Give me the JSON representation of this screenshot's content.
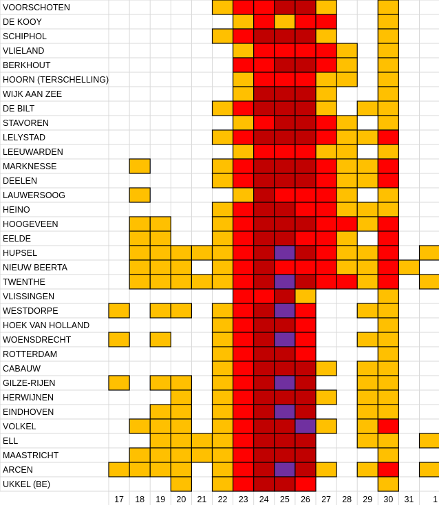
{
  "chart_data": {
    "type": "heatmap",
    "title": "",
    "xlabel": "",
    "ylabel": "",
    "x_labels": [
      "17",
      "18",
      "19",
      "20",
      "21",
      "22",
      "23",
      "24",
      "25",
      "26",
      "27",
      "28",
      "29",
      "30",
      "31",
      "1"
    ],
    "level_colors": [
      "#ffffff",
      "#ffc000",
      "#ff0000",
      "#c00000",
      "#7030a0"
    ],
    "rows": [
      {
        "station": "VOORSCHOTEN",
        "levels": [
          0,
          0,
          0,
          0,
          0,
          1,
          2,
          2,
          3,
          3,
          1,
          0,
          0,
          1,
          0,
          0
        ]
      },
      {
        "station": "DE KOOY",
        "levels": [
          0,
          0,
          0,
          0,
          0,
          0,
          1,
          2,
          1,
          2,
          2,
          0,
          0,
          1,
          0,
          0
        ]
      },
      {
        "station": "SCHIPHOL",
        "levels": [
          0,
          0,
          0,
          0,
          0,
          1,
          2,
          3,
          3,
          3,
          1,
          0,
          0,
          1,
          0,
          0
        ]
      },
      {
        "station": "VLIELAND",
        "levels": [
          0,
          0,
          0,
          0,
          0,
          0,
          1,
          2,
          2,
          2,
          2,
          1,
          0,
          1,
          0,
          0
        ]
      },
      {
        "station": "BERKHOUT",
        "levels": [
          0,
          0,
          0,
          0,
          0,
          0,
          2,
          2,
          3,
          3,
          2,
          1,
          0,
          1,
          0,
          0
        ]
      },
      {
        "station": "HOORN (TERSCHELLING)",
        "levels": [
          0,
          0,
          0,
          0,
          0,
          0,
          1,
          2,
          2,
          2,
          1,
          1,
          0,
          1,
          0,
          0
        ]
      },
      {
        "station": "WIJK AAN ZEE",
        "levels": [
          0,
          0,
          0,
          0,
          0,
          0,
          1,
          3,
          3,
          3,
          1,
          0,
          0,
          1,
          0,
          0
        ]
      },
      {
        "station": "DE BILT",
        "levels": [
          0,
          0,
          0,
          0,
          0,
          1,
          2,
          3,
          3,
          3,
          1,
          0,
          1,
          1,
          0,
          0
        ]
      },
      {
        "station": "STAVOREN",
        "levels": [
          0,
          0,
          0,
          0,
          0,
          0,
          1,
          2,
          3,
          3,
          2,
          1,
          0,
          1,
          0,
          0
        ]
      },
      {
        "station": "LELYSTAD",
        "levels": [
          0,
          0,
          0,
          0,
          0,
          1,
          2,
          3,
          3,
          3,
          2,
          1,
          1,
          2,
          0,
          0
        ]
      },
      {
        "station": "LEEUWARDEN",
        "levels": [
          0,
          0,
          0,
          0,
          0,
          0,
          1,
          2,
          2,
          2,
          1,
          1,
          0,
          1,
          0,
          0
        ]
      },
      {
        "station": "MARKNESSE",
        "levels": [
          0,
          1,
          0,
          0,
          0,
          1,
          2,
          3,
          3,
          3,
          2,
          1,
          1,
          2,
          0,
          0
        ]
      },
      {
        "station": "DEELEN",
        "levels": [
          0,
          0,
          0,
          0,
          0,
          1,
          2,
          3,
          3,
          3,
          2,
          1,
          1,
          2,
          0,
          0
        ]
      },
      {
        "station": "LAUWERSOOG",
        "levels": [
          0,
          1,
          0,
          0,
          0,
          0,
          1,
          3,
          2,
          2,
          2,
          1,
          0,
          1,
          0,
          0
        ]
      },
      {
        "station": "HEINO",
        "levels": [
          0,
          0,
          0,
          0,
          0,
          1,
          2,
          3,
          3,
          2,
          2,
          1,
          1,
          1,
          0,
          0
        ]
      },
      {
        "station": "HOOGEVEEN",
        "levels": [
          0,
          1,
          1,
          0,
          0,
          1,
          2,
          3,
          3,
          3,
          2,
          2,
          1,
          2,
          0,
          0
        ]
      },
      {
        "station": "EELDE",
        "levels": [
          0,
          1,
          1,
          0,
          0,
          1,
          2,
          3,
          3,
          2,
          2,
          1,
          0,
          2,
          0,
          0
        ]
      },
      {
        "station": "HUPSEL",
        "levels": [
          0,
          1,
          1,
          1,
          1,
          1,
          2,
          3,
          4,
          3,
          2,
          1,
          1,
          2,
          0,
          1
        ]
      },
      {
        "station": "NIEUW BEERTA",
        "levels": [
          0,
          1,
          1,
          1,
          0,
          1,
          2,
          3,
          2,
          2,
          2,
          1,
          1,
          2,
          1,
          0
        ]
      },
      {
        "station": "TWENTHE",
        "levels": [
          0,
          1,
          1,
          1,
          1,
          1,
          2,
          3,
          4,
          3,
          2,
          2,
          1,
          2,
          0,
          1
        ]
      },
      {
        "station": "VLISSINGEN",
        "levels": [
          0,
          0,
          0,
          0,
          0,
          0,
          2,
          2,
          3,
          1,
          0,
          0,
          0,
          1,
          0,
          0
        ]
      },
      {
        "station": "WESTDORPE",
        "levels": [
          1,
          0,
          1,
          1,
          0,
          1,
          2,
          3,
          4,
          2,
          0,
          0,
          1,
          1,
          0,
          0
        ]
      },
      {
        "station": "HOEK VAN HOLLAND",
        "levels": [
          0,
          0,
          0,
          0,
          0,
          1,
          2,
          3,
          3,
          2,
          0,
          0,
          0,
          1,
          0,
          0
        ]
      },
      {
        "station": "WOENSDRECHT",
        "levels": [
          1,
          0,
          1,
          0,
          0,
          1,
          2,
          3,
          4,
          2,
          0,
          0,
          1,
          1,
          0,
          0
        ]
      },
      {
        "station": "ROTTERDAM",
        "levels": [
          0,
          0,
          0,
          0,
          0,
          1,
          2,
          3,
          3,
          2,
          0,
          0,
          0,
          1,
          0,
          0
        ]
      },
      {
        "station": "CABAUW",
        "levels": [
          0,
          0,
          0,
          0,
          0,
          1,
          2,
          3,
          3,
          3,
          1,
          0,
          1,
          1,
          0,
          0
        ]
      },
      {
        "station": "GILZE-RIJEN",
        "levels": [
          1,
          0,
          1,
          1,
          0,
          1,
          2,
          3,
          4,
          3,
          0,
          0,
          1,
          1,
          0,
          0
        ]
      },
      {
        "station": "HERWIJNEN",
        "levels": [
          0,
          0,
          0,
          1,
          0,
          1,
          2,
          3,
          3,
          3,
          1,
          0,
          1,
          1,
          0,
          0
        ]
      },
      {
        "station": "EINDHOVEN",
        "levels": [
          0,
          0,
          1,
          1,
          0,
          1,
          2,
          3,
          4,
          3,
          0,
          0,
          1,
          1,
          0,
          0
        ]
      },
      {
        "station": "VOLKEL",
        "levels": [
          0,
          1,
          1,
          1,
          0,
          1,
          2,
          3,
          3,
          4,
          1,
          0,
          1,
          2,
          0,
          0
        ]
      },
      {
        "station": "ELL",
        "levels": [
          0,
          0,
          1,
          1,
          1,
          1,
          2,
          3,
          3,
          3,
          0,
          0,
          1,
          1,
          0,
          1
        ]
      },
      {
        "station": "MAASTRICHT",
        "levels": [
          0,
          1,
          1,
          1,
          1,
          1,
          2,
          3,
          3,
          3,
          0,
          0,
          0,
          1,
          0,
          0
        ]
      },
      {
        "station": "ARCEN",
        "levels": [
          1,
          1,
          1,
          1,
          0,
          1,
          2,
          3,
          4,
          3,
          1,
          0,
          1,
          2,
          0,
          1
        ]
      },
      {
        "station": "UKKEL (BE)",
        "levels": [
          0,
          0,
          0,
          1,
          0,
          1,
          2,
          3,
          3,
          2,
          0,
          0,
          0,
          1,
          0,
          0
        ]
      }
    ]
  }
}
